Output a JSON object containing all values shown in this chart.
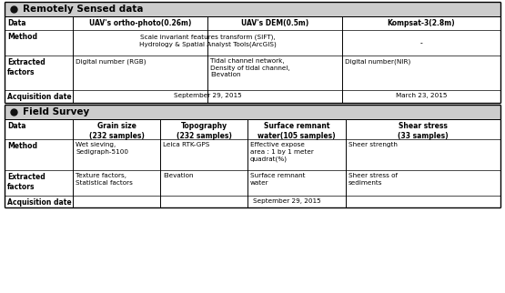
{
  "bg_color": "#ffffff",
  "header_bg": "#cccccc",
  "border_color": "#000000",
  "fig_width": 5.55,
  "fig_height": 3.22,
  "section1_title": "Remotely Sensed data",
  "section2_title": "Field Survey",
  "rs_row_labels": [
    "Data",
    "Method",
    "Extracted\nfactors",
    "Acquisition date"
  ],
  "rs_col1_data": [
    "UAV's ortho-photo(0.26m)",
    "Scale invariant features transform (SIFT),\nHydrology & Spatial Analyst Tools(ArcGIS)",
    "Digital number (RGB)",
    ""
  ],
  "rs_col2_data": [
    "UAV's DEM(0.5m)",
    "",
    "Tidal channel network,\nDensity of tidal channel,\nElevation",
    "September 29, 2015"
  ],
  "rs_col3_data": [
    "Kompsat-3(2.8m)",
    "-",
    "Digital number(NIR)",
    "March 23, 2015"
  ],
  "fs_row_labels": [
    "Data",
    "Method",
    "Extracted\nfactors",
    "Acquisition date"
  ],
  "fs_col1_header": "Grain size\n(232 samples)",
  "fs_col2_header": "Topography\n(232 samples)",
  "fs_col3_header": "Surface remnant\nwater(105 samples)",
  "fs_col4_header": "Shear stress\n(33 samples)",
  "fs_col1_method": "Wet sieving,\nSedigraph-5100",
  "fs_col2_method": "Leica RTK-GPS",
  "fs_col3_method": "Effective expose\narea : 1 by 1 meter\nquadrat(%)",
  "fs_col4_method": "Sheer strength",
  "fs_col1_ext": "Texture factors,\nStatistical factors",
  "fs_col2_ext": "Elevation",
  "fs_col3_ext": "Surface remnant\nwater",
  "fs_col4_ext": "Sheer stress of\nsediments",
  "fs_acq": "September 29, 2015"
}
